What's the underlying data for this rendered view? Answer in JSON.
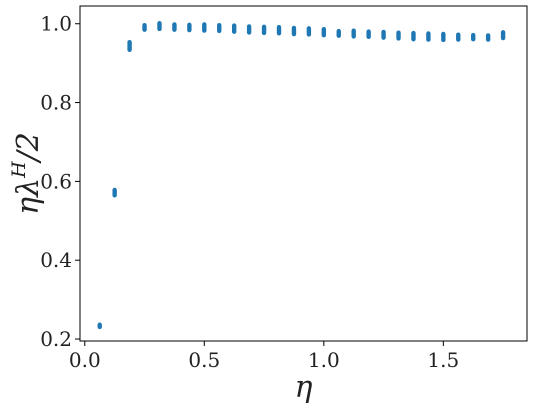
{
  "chart_data": {
    "type": "scatter",
    "title": "",
    "xlabel": "η",
    "ylabel": {
      "base": "ηλ",
      "sup": "H",
      "suffix": "/2"
    },
    "xlim": [
      -0.02,
      1.85
    ],
    "ylim": [
      0.195,
      1.045
    ],
    "x_ticks": [
      0.0,
      0.5,
      1.0,
      1.5
    ],
    "x_tick_labels": [
      "0.0",
      "0.5",
      "1.0",
      "1.5"
    ],
    "y_ticks": [
      0.2,
      0.4,
      0.6,
      0.8,
      1.0
    ],
    "y_tick_labels": [
      "0.2",
      "0.4",
      "0.6",
      "0.8",
      "1.0"
    ],
    "grid": false,
    "legend": "none",
    "marker_color": "#1f77b4",
    "series": [
      {
        "points": [
          {
            "x": 0.0625,
            "y_min": 0.229,
            "y_max": 0.238
          },
          {
            "x": 0.125,
            "y_min": 0.563,
            "y_max": 0.58
          },
          {
            "x": 0.1875,
            "y_min": 0.932,
            "y_max": 0.955
          },
          {
            "x": 0.25,
            "y_min": 0.983,
            "y_max": 0.998
          },
          {
            "x": 0.3125,
            "y_min": 0.985,
            "y_max": 1.003
          },
          {
            "x": 0.375,
            "y_min": 0.983,
            "y_max": 1.0
          },
          {
            "x": 0.4375,
            "y_min": 0.982,
            "y_max": 0.999
          },
          {
            "x": 0.5,
            "y_min": 0.981,
            "y_max": 1.0
          },
          {
            "x": 0.5625,
            "y_min": 0.98,
            "y_max": 0.998
          },
          {
            "x": 0.625,
            "y_min": 0.978,
            "y_max": 0.997
          },
          {
            "x": 0.6875,
            "y_min": 0.976,
            "y_max": 0.995
          },
          {
            "x": 0.75,
            "y_min": 0.975,
            "y_max": 0.994
          },
          {
            "x": 0.8125,
            "y_min": 0.974,
            "y_max": 0.993
          },
          {
            "x": 0.875,
            "y_min": 0.972,
            "y_max": 0.991
          },
          {
            "x": 0.9375,
            "y_min": 0.971,
            "y_max": 0.99
          },
          {
            "x": 1.0,
            "y_min": 0.969,
            "y_max": 0.988
          },
          {
            "x": 1.0625,
            "y_min": 0.968,
            "y_max": 0.983
          },
          {
            "x": 1.125,
            "y_min": 0.966,
            "y_max": 0.984
          },
          {
            "x": 1.1875,
            "y_min": 0.965,
            "y_max": 0.982
          },
          {
            "x": 1.25,
            "y_min": 0.963,
            "y_max": 0.981
          },
          {
            "x": 1.3125,
            "y_min": 0.961,
            "y_max": 0.979
          },
          {
            "x": 1.375,
            "y_min": 0.959,
            "y_max": 0.978
          },
          {
            "x": 1.4375,
            "y_min": 0.958,
            "y_max": 0.977
          },
          {
            "x": 1.5,
            "y_min": 0.957,
            "y_max": 0.976
          },
          {
            "x": 1.5625,
            "y_min": 0.958,
            "y_max": 0.974
          },
          {
            "x": 1.625,
            "y_min": 0.959,
            "y_max": 0.973
          },
          {
            "x": 1.6875,
            "y_min": 0.958,
            "y_max": 0.972
          },
          {
            "x": 1.75,
            "y_min": 0.962,
            "y_max": 0.98
          }
        ]
      }
    ]
  }
}
